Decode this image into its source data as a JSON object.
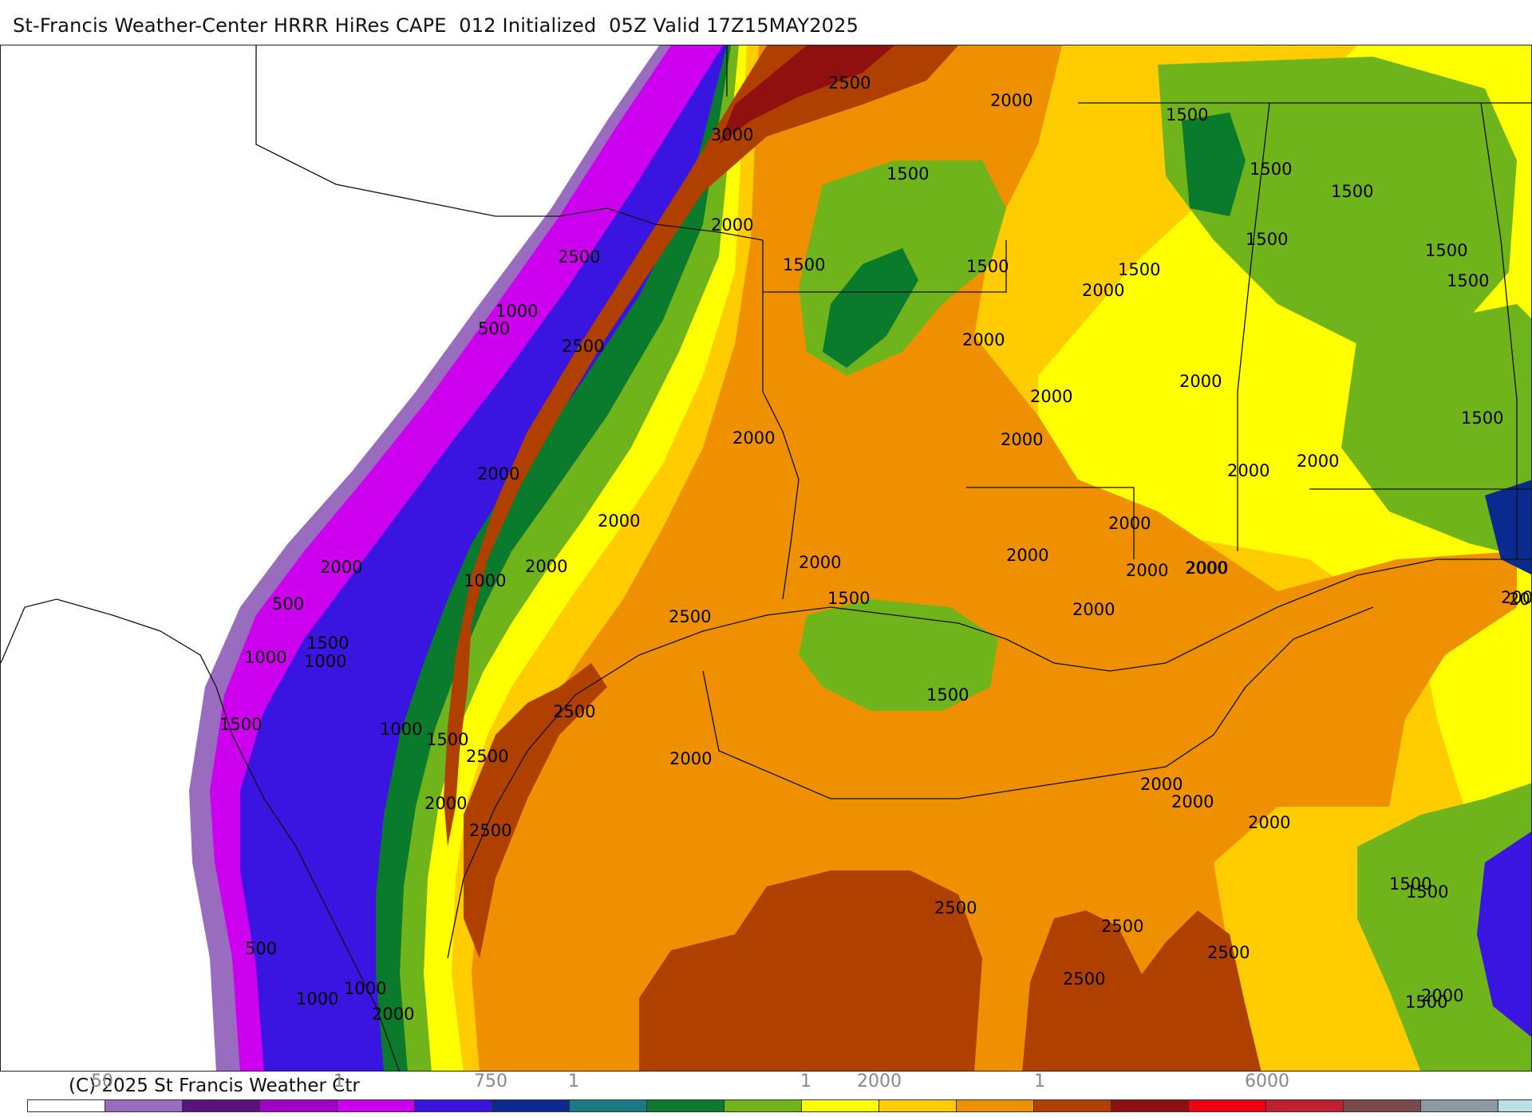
{
  "header": {
    "title": "St-Francis Weather-Center HRRR HiRes CAPE  012 Initialized  05Z Valid 17Z15MAY2025"
  },
  "legend": {
    "colors": [
      "#ffffff",
      "#9a6cc0",
      "#5a1480",
      "#a000c8",
      "#cc00ee",
      "#3a14e0",
      "#0a2a90",
      "#1c7a86",
      "#0a7a2c",
      "#6eb41a",
      "#ffff00",
      "#ffcc00",
      "#ef9000",
      "#b04000",
      "#901010",
      "#ee0010",
      "#c02030",
      "#7a4a4a",
      "#8a9aa0",
      "#b8e0e6"
    ],
    "tick_labels": [
      "50",
      "1",
      "750",
      "1",
      "1",
      "2000",
      "1",
      "6000"
    ],
    "copyright": "(C) 2025 St Francis Weather Ctr"
  },
  "map": {
    "palette": {
      "white": "#ffffff",
      "lavender": "#9a6cc0",
      "magenta": "#cc00ee",
      "blue": "#3a14e0",
      "navy": "#0a2a90",
      "dark_green": "#0a7a2c",
      "green": "#6eb41a",
      "yellow": "#ffff00",
      "gold": "#ffcc00",
      "orange": "#ef9000",
      "rust": "#b04000",
      "maroon": "#901010"
    },
    "contour_labels": [
      "2500",
      "2000",
      "3000",
      "1500",
      "2000",
      "2500",
      "1500",
      "1500",
      "1000",
      "1500",
      "500",
      "2000",
      "1500",
      "2500",
      "1500",
      "2000",
      "1500",
      "2000",
      "1500",
      "1500",
      "1500",
      "2000",
      "2000",
      "2000",
      "2000",
      "2000",
      "1500",
      "2000",
      "2000",
      "2000",
      "2000",
      "2000",
      "2000",
      "2500",
      "1500",
      "2000",
      "500",
      "2000",
      "1000",
      "1500",
      "1000",
      "1000",
      "2000",
      "2000",
      "2000",
      "2000",
      "2500",
      "1500",
      "1500",
      "1000",
      "1500",
      "2000",
      "2500",
      "2500",
      "2000",
      "2000",
      "2000",
      "2000",
      "2500",
      "2500",
      "2500",
      "2500",
      "2000",
      "1500",
      "1500",
      "500",
      "1000",
      "1000",
      "2000",
      "1500",
      "2000"
    ]
  }
}
